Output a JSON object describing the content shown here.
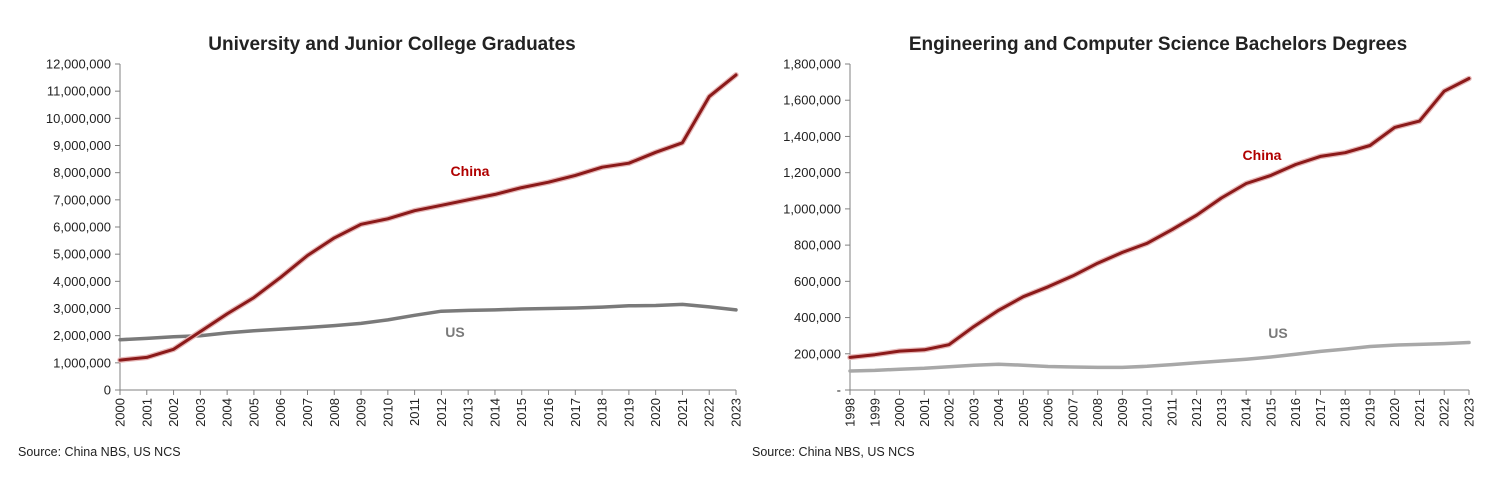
{
  "chart_data": [
    {
      "type": "line",
      "title": "University and Junior College Graduates",
      "source": "Source: China NBS, US NCS",
      "xlabel": "",
      "ylabel": "",
      "x": [
        "2000",
        "2001",
        "2002",
        "2003",
        "2004",
        "2005",
        "2006",
        "2007",
        "2008",
        "2009",
        "2010",
        "2011",
        "2012",
        "2013",
        "2014",
        "2015",
        "2016",
        "2017",
        "2018",
        "2019",
        "2020",
        "2021",
        "2022",
        "2023"
      ],
      "ylim": [
        0,
        12000000
      ],
      "yticks": [
        "0",
        "1,000,000",
        "2,000,000",
        "3,000,000",
        "4,000,000",
        "5,000,000",
        "6,000,000",
        "7,000,000",
        "8,000,000",
        "9,000,000",
        "10,000,000",
        "11,000,000",
        "12,000,000"
      ],
      "grid": false,
      "series": [
        {
          "name": "China",
          "color": "#8b1a1a",
          "values": [
            1100000,
            1200000,
            1500000,
            2150000,
            2800000,
            3400000,
            4150000,
            4950000,
            5600000,
            6100000,
            6300000,
            6600000,
            6800000,
            7000000,
            7200000,
            7450000,
            7650000,
            7900000,
            8200000,
            8350000,
            8750000,
            9100000,
            10800000,
            11600000
          ]
        },
        {
          "name": "US",
          "color": "#7a7a7a",
          "values": [
            1850000,
            1900000,
            1960000,
            2000000,
            2100000,
            2180000,
            2240000,
            2300000,
            2370000,
            2450000,
            2580000,
            2750000,
            2900000,
            2930000,
            2950000,
            2980000,
            3000000,
            3020000,
            3050000,
            3100000,
            3110000,
            3150000,
            3060000,
            2950000
          ]
        }
      ]
    },
    {
      "type": "line",
      "title": "Engineering and Computer Science Bachelors Degrees",
      "source": "Source: China NBS, US NCS",
      "xlabel": "",
      "ylabel": "",
      "x": [
        "1998",
        "1999",
        "2000",
        "2001",
        "2002",
        "2003",
        "2004",
        "2005",
        "2006",
        "2007",
        "2008",
        "2009",
        "2010",
        "2011",
        "2012",
        "2013",
        "2014",
        "2015",
        "2016",
        "2017",
        "2018",
        "2019",
        "2020",
        "2021",
        "2022",
        "2023"
      ],
      "ylim": [
        0,
        1800000
      ],
      "yticks": [
        "-",
        "200,000",
        "400,000",
        "600,000",
        "800,000",
        "1,000,000",
        "1,200,000",
        "1,400,000",
        "1,600,000",
        "1,800,000"
      ],
      "grid": false,
      "series": [
        {
          "name": "China",
          "color": "#8b1a1a",
          "values": [
            180000,
            195000,
            215000,
            222000,
            250000,
            350000,
            440000,
            515000,
            570000,
            630000,
            700000,
            760000,
            810000,
            885000,
            965000,
            1060000,
            1140000,
            1185000,
            1245000,
            1290000,
            1310000,
            1350000,
            1450000,
            1485000,
            1650000,
            1720000
          ]
        },
        {
          "name": "US",
          "color": "#a8a8a8",
          "values": [
            105000,
            108000,
            115000,
            120000,
            128000,
            137000,
            142000,
            137000,
            130000,
            127000,
            125000,
            125000,
            131000,
            140000,
            150000,
            160000,
            170000,
            182000,
            197000,
            213000,
            226000,
            240000,
            248000,
            252000,
            256000,
            262000
          ]
        }
      ]
    }
  ]
}
